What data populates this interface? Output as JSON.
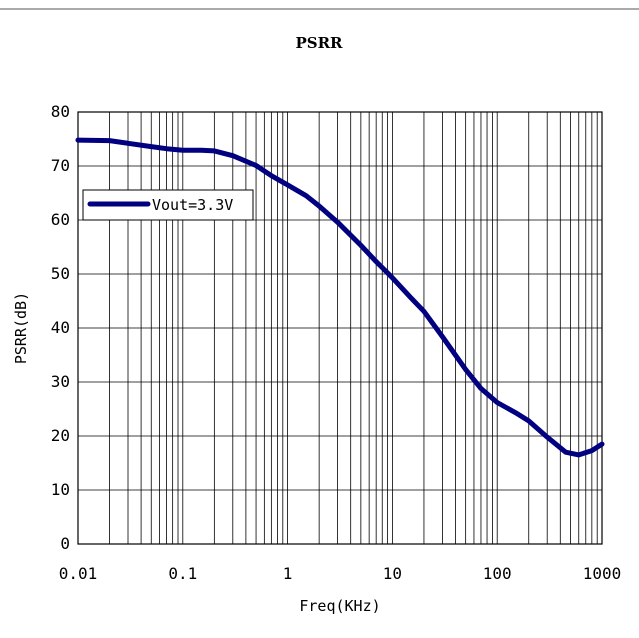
{
  "chart_data": {
    "type": "line",
    "title": "PSRR",
    "xlabel": "Freq(KHz)",
    "ylabel": "PSRR(dB)",
    "x_scale": "log",
    "xlim": [
      0.01,
      1000
    ],
    "ylim": [
      0,
      80
    ],
    "x_ticks": [
      {
        "value": 0.01,
        "label": "0.01"
      },
      {
        "value": 0.1,
        "label": "0.1"
      },
      {
        "value": 1,
        "label": "1"
      },
      {
        "value": 10,
        "label": "10"
      },
      {
        "value": 100,
        "label": "100"
      },
      {
        "value": 1000,
        "label": "1000"
      }
    ],
    "y_ticks": [
      {
        "value": 0,
        "label": "0"
      },
      {
        "value": 10,
        "label": "10"
      },
      {
        "value": 20,
        "label": "20"
      },
      {
        "value": 30,
        "label": "30"
      },
      {
        "value": 40,
        "label": "40"
      },
      {
        "value": 50,
        "label": "50"
      },
      {
        "value": 60,
        "label": "60"
      },
      {
        "value": 70,
        "label": "70"
      },
      {
        "value": 80,
        "label": "80"
      }
    ],
    "grid": true,
    "legend_position": "top-left",
    "series": [
      {
        "name": "Vout=3.3V",
        "color": "#000080",
        "points": [
          [
            0.01,
            74.8
          ],
          [
            0.02,
            74.7
          ],
          [
            0.03,
            74.2
          ],
          [
            0.05,
            73.6
          ],
          [
            0.07,
            73.2
          ],
          [
            0.1,
            72.9
          ],
          [
            0.15,
            72.9
          ],
          [
            0.2,
            72.8
          ],
          [
            0.3,
            71.9
          ],
          [
            0.5,
            70.1
          ],
          [
            0.7,
            68.2
          ],
          [
            1,
            66.5
          ],
          [
            1.5,
            64.5
          ],
          [
            2,
            62.6
          ],
          [
            3,
            59.6
          ],
          [
            5,
            55.3
          ],
          [
            7,
            52.3
          ],
          [
            10,
            49.3
          ],
          [
            15,
            45.6
          ],
          [
            20,
            43.1
          ],
          [
            30,
            38.4
          ],
          [
            50,
            32.3
          ],
          [
            70,
            28.8
          ],
          [
            100,
            26.2
          ],
          [
            150,
            24.3
          ],
          [
            200,
            22.8
          ],
          [
            300,
            19.8
          ],
          [
            450,
            17.0
          ],
          [
            600,
            16.5
          ],
          [
            800,
            17.3
          ],
          [
            1000,
            18.5
          ]
        ]
      }
    ]
  }
}
